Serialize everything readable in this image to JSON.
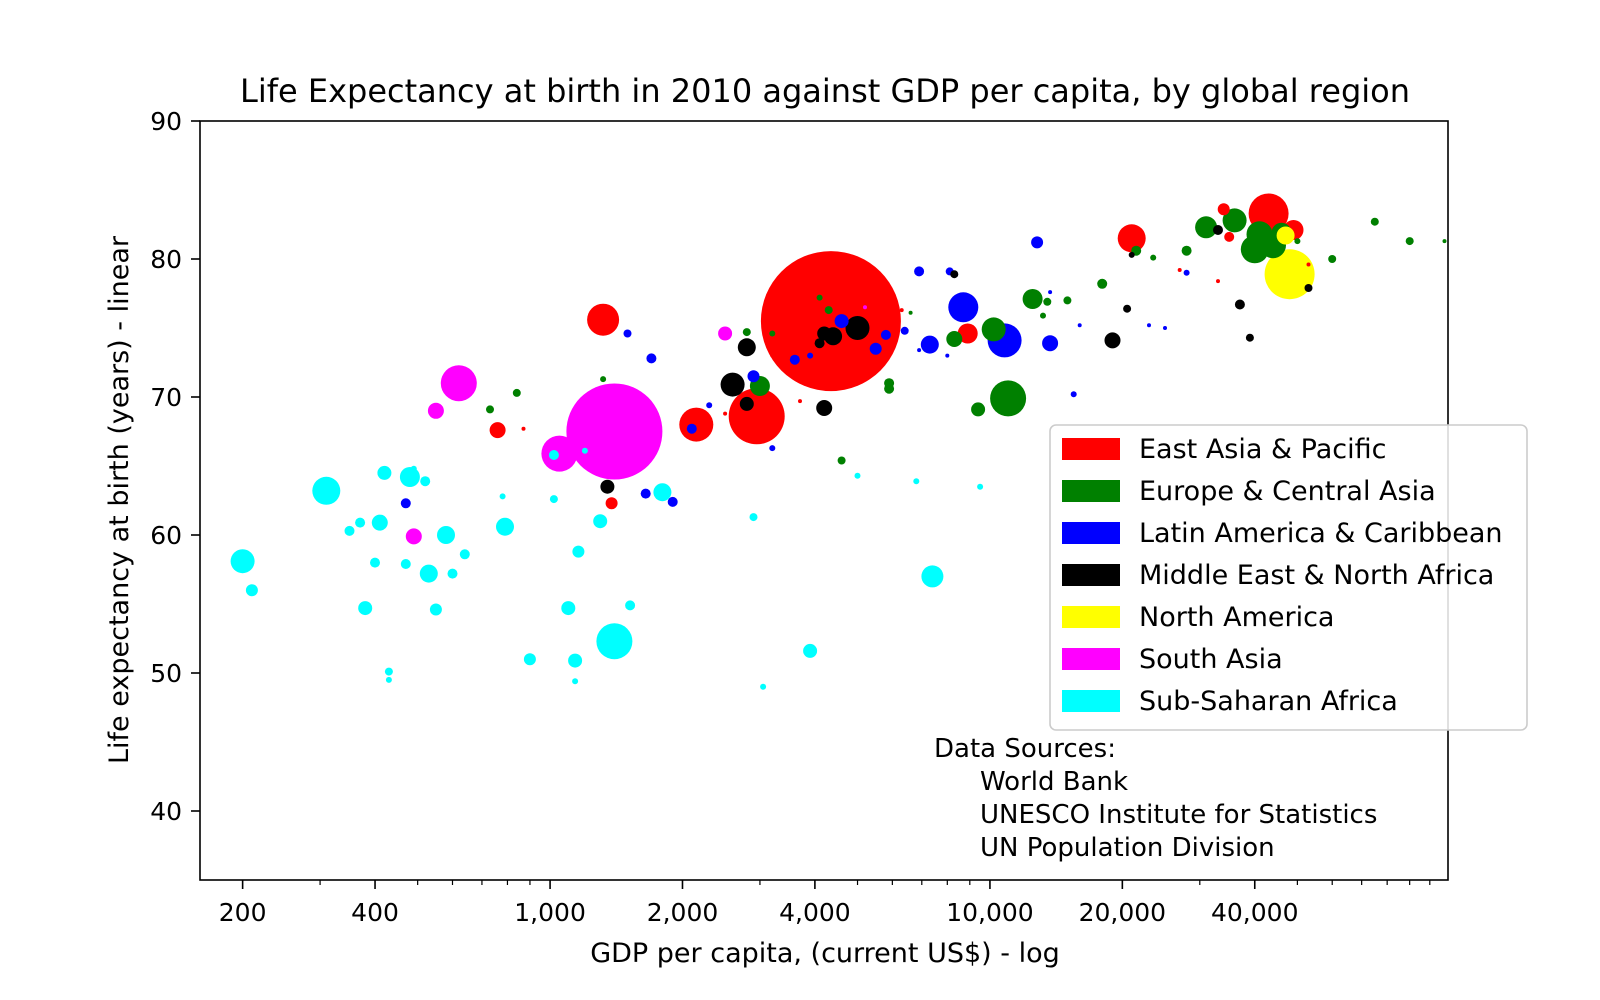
{
  "chart_data": {
    "type": "scatter",
    "title": "Life Expectancy at birth in 2010 against GDP per capita, by global region",
    "xlabel": "GDP per capita, (current US$) - log",
    "ylabel": "Life expectancy at birth (years) - linear",
    "xscale": "log",
    "xlim": [
      160,
      110000
    ],
    "ylim": [
      35,
      90
    ],
    "xticks": [
      200,
      400,
      1000,
      2000,
      4000,
      10000,
      20000,
      40000
    ],
    "xtick_labels": [
      "200",
      "400",
      "1,000",
      "2,000",
      "4,000",
      "10,000",
      "20,000",
      "40,000"
    ],
    "yticks": [
      40,
      50,
      60,
      70,
      80,
      90
    ],
    "ytick_labels": [
      "40",
      "50",
      "60",
      "70",
      "80",
      "90"
    ],
    "grid": false,
    "legend_position": "right",
    "marker_size_note": "marker area scales with population",
    "series": [
      {
        "name": "East Asia & Pacific",
        "color": "#ff0000",
        "points": [
          [
            4350,
            75.5,
            70
          ],
          [
            1320,
            75.6,
            16
          ],
          [
            2950,
            68.6,
            28
          ],
          [
            2150,
            68.0,
            17
          ],
          [
            43000,
            83.3,
            20
          ],
          [
            21000,
            81.5,
            14
          ],
          [
            49000,
            82.1,
            10
          ],
          [
            8900,
            74.6,
            10
          ],
          [
            760,
            67.6,
            8
          ],
          [
            1380,
            62.3,
            6
          ],
          [
            870,
            67.7,
            2
          ],
          [
            3200,
            73.0,
            2
          ],
          [
            3700,
            69.7,
            2
          ],
          [
            6300,
            76.3,
            2
          ],
          [
            34000,
            83.6,
            6
          ],
          [
            35000,
            81.6,
            5
          ],
          [
            33000,
            78.4,
            2
          ],
          [
            2500,
            68.8,
            2
          ],
          [
            53000,
            79.6,
            2
          ],
          [
            27000,
            79.2,
            2
          ],
          [
            5300,
            72.9,
            2
          ],
          [
            2800,
            68.3,
            3
          ]
        ]
      },
      {
        "name": "Europe & Central Asia",
        "color": "#008000",
        "points": [
          [
            11000,
            69.9,
            18
          ],
          [
            40000,
            80.7,
            14
          ],
          [
            44000,
            81.0,
            13
          ],
          [
            41000,
            81.8,
            13
          ],
          [
            36000,
            82.8,
            12
          ],
          [
            31000,
            82.3,
            11
          ],
          [
            46000,
            81.9,
            10
          ],
          [
            12500,
            77.1,
            10
          ],
          [
            3000,
            70.8,
            10
          ],
          [
            10200,
            74.9,
            12
          ],
          [
            8300,
            74.2,
            8
          ],
          [
            13500,
            76.9,
            4
          ],
          [
            9400,
            69.1,
            7
          ],
          [
            5900,
            70.6,
            5
          ],
          [
            5900,
            71.0,
            5
          ],
          [
            28000,
            80.6,
            5
          ],
          [
            21500,
            80.6,
            5
          ],
          [
            18000,
            78.2,
            5
          ],
          [
            15000,
            77.0,
            4
          ],
          [
            23500,
            80.1,
            3
          ],
          [
            60000,
            80.0,
            4
          ],
          [
            75000,
            82.7,
            4
          ],
          [
            90000,
            81.3,
            4
          ],
          [
            108000,
            81.3,
            2
          ],
          [
            50000,
            81.3,
            3
          ],
          [
            4600,
            65.4,
            4
          ],
          [
            2800,
            74.7,
            4
          ],
          [
            840,
            70.3,
            4
          ],
          [
            730,
            69.1,
            4
          ],
          [
            4300,
            76.3,
            4
          ],
          [
            4100,
            77.2,
            3
          ],
          [
            1320,
            71.3,
            3
          ],
          [
            3200,
            74.6,
            3
          ],
          [
            13200,
            75.9,
            3
          ],
          [
            6600,
            76.1,
            2
          ]
        ]
      },
      {
        "name": "Latin America & Caribbean",
        "color": "#0000ff",
        "points": [
          [
            10800,
            74.1,
            17
          ],
          [
            8700,
            76.5,
            15
          ],
          [
            7300,
            73.8,
            9
          ],
          [
            6900,
            79.1,
            5
          ],
          [
            5800,
            74.5,
            5
          ],
          [
            4600,
            75.5,
            7
          ],
          [
            6400,
            74.8,
            4
          ],
          [
            5500,
            73.5,
            6
          ],
          [
            12800,
            81.2,
            6
          ],
          [
            13700,
            73.9,
            8
          ],
          [
            3600,
            72.7,
            5
          ],
          [
            2900,
            71.5,
            6
          ],
          [
            1500,
            74.6,
            4
          ],
          [
            1650,
            63.0,
            5
          ],
          [
            1900,
            62.4,
            5
          ],
          [
            2100,
            67.7,
            5
          ],
          [
            1700,
            72.8,
            5
          ],
          [
            8100,
            79.1,
            4
          ],
          [
            8000,
            73.0,
            2
          ],
          [
            13700,
            77.6,
            2
          ],
          [
            15500,
            70.2,
            3
          ],
          [
            16000,
            75.2,
            2
          ],
          [
            25000,
            75.0,
            2
          ],
          [
            28000,
            79.0,
            3
          ],
          [
            23000,
            75.2,
            2
          ],
          [
            3900,
            73.0,
            3
          ],
          [
            6900,
            73.4,
            2
          ],
          [
            2300,
            69.4,
            3
          ],
          [
            470,
            62.3,
            5
          ],
          [
            3200,
            66.3,
            3
          ]
        ]
      },
      {
        "name": "Middle East & North Africa",
        "color": "#000000",
        "points": [
          [
            5000,
            75.0,
            12
          ],
          [
            4400,
            74.4,
            9
          ],
          [
            4200,
            74.6,
            7
          ],
          [
            4100,
            73.9,
            5
          ],
          [
            2800,
            73.6,
            9
          ],
          [
            2600,
            70.9,
            12
          ],
          [
            2800,
            69.5,
            7
          ],
          [
            4200,
            69.2,
            8
          ],
          [
            1350,
            63.5,
            7
          ],
          [
            19000,
            74.1,
            8
          ],
          [
            20500,
            76.4,
            4
          ],
          [
            21000,
            80.3,
            3
          ],
          [
            37000,
            76.7,
            5
          ],
          [
            39000,
            74.3,
            4
          ],
          [
            33000,
            82.1,
            5
          ],
          [
            53000,
            77.9,
            4
          ],
          [
            8300,
            78.9,
            4
          ]
        ]
      },
      {
        "name": "North America",
        "color": "#ffff00",
        "points": [
          [
            48000,
            78.9,
            25
          ],
          [
            47000,
            81.7,
            9
          ]
        ]
      },
      {
        "name": "South Asia",
        "color": "#ff00ff",
        "points": [
          [
            1400,
            67.5,
            48
          ],
          [
            620,
            71.0,
            18
          ],
          [
            1050,
            65.9,
            18
          ],
          [
            2500,
            74.6,
            7
          ],
          [
            550,
            69.0,
            8
          ],
          [
            490,
            59.9,
            8
          ],
          [
            5200,
            76.5,
            2
          ]
        ]
      },
      {
        "name": "Sub-Saharan Africa",
        "color": "#00ffff",
        "points": [
          [
            1400,
            52.3,
            18
          ],
          [
            310,
            63.2,
            14
          ],
          [
            200,
            58.1,
            12
          ],
          [
            580,
            60.0,
            9
          ],
          [
            1800,
            63.1,
            9
          ],
          [
            7400,
            57.0,
            11
          ],
          [
            420,
            64.5,
            7
          ],
          [
            480,
            64.2,
            10
          ],
          [
            530,
            57.2,
            9
          ],
          [
            790,
            60.6,
            9
          ],
          [
            520,
            63.9,
            5
          ],
          [
            410,
            60.9,
            8
          ],
          [
            370,
            60.9,
            5
          ],
          [
            380,
            54.7,
            7
          ],
          [
            470,
            57.9,
            5
          ],
          [
            900,
            51.0,
            6
          ],
          [
            1100,
            54.7,
            7
          ],
          [
            1140,
            50.9,
            7
          ],
          [
            1300,
            61.0,
            7
          ],
          [
            1160,
            58.8,
            6
          ],
          [
            1520,
            54.9,
            5
          ],
          [
            3900,
            51.6,
            7
          ],
          [
            550,
            54.6,
            6
          ],
          [
            600,
            57.2,
            5
          ],
          [
            640,
            58.6,
            5
          ],
          [
            350,
            60.3,
            5
          ],
          [
            400,
            58.0,
            5
          ],
          [
            430,
            50.1,
            4
          ],
          [
            430,
            49.5,
            3
          ],
          [
            1020,
            65.8,
            5
          ],
          [
            1140,
            49.4,
            3
          ],
          [
            210,
            56.0,
            6
          ],
          [
            2900,
            61.3,
            4
          ],
          [
            3050,
            49.0,
            3
          ],
          [
            5000,
            64.3,
            3
          ],
          [
            6800,
            63.9,
            3
          ],
          [
            9500,
            63.5,
            3
          ],
          [
            1020,
            62.6,
            4
          ],
          [
            780,
            62.8,
            3
          ],
          [
            1200,
            66.1,
            3
          ],
          [
            490,
            64.8,
            3
          ],
          [
            590,
            59.9,
            3
          ]
        ]
      }
    ],
    "annotation": {
      "heading": "Data Sources:",
      "lines": [
        "World Bank",
        "UNESCO Institute for Statistics",
        "UN Population Division"
      ]
    }
  }
}
